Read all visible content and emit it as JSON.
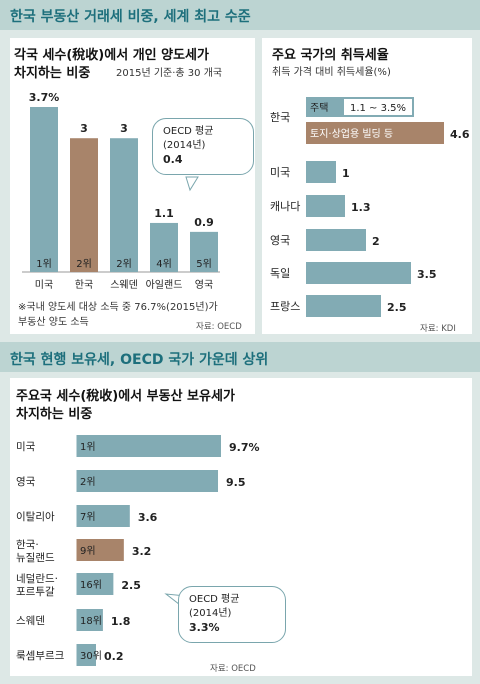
{
  "section1": {
    "title": "한국 부동산 거래세 비중, 세계 최고 수준"
  },
  "left_chart": {
    "title_line1": "각국 세수(稅收)에서 개인 양도세가",
    "title_line2": "차지하는 비중",
    "subtitle": "2015년 기준·총 30 개국",
    "note_line1": "※국내 양도세 대상 소득 중 76.7%(2015년)가",
    "note_line2": "부동산 양도 소득",
    "source": "자료: OECD",
    "callout": {
      "line1": "OECD 평균",
      "line2": "(2014년)",
      "value": "0.4"
    }
  },
  "right_chart": {
    "title": "주요 국가의 취득세율",
    "subtitle": "취득 가격 대비 취득세율(%)",
    "source": "자료: KDI"
  },
  "section2": {
    "title": "한국 현행 보유세, OECD 국가 가운데 상위"
  },
  "bottom_chart": {
    "title_line1": "주요국 세수(稅收)에서 부동산 보유세가",
    "title_line2": "차지하는 비중",
    "source": "자료: OECD",
    "callout": {
      "line1": "OECD 평균",
      "line2": "(2014년)",
      "value": "3.3%"
    }
  },
  "colors": {
    "teal": "#82abb4",
    "brown": "#a8846a",
    "band": "#bcd4d2",
    "bg": "#dde8e6",
    "title": "#1d6f7c"
  },
  "chart_data": [
    {
      "type": "bar",
      "title": "각국 세수(稅收)에서 개인 양도세가 차지하는 비중",
      "subtitle": "2015년 기준·총 30 개국",
      "categories": [
        "미국",
        "한국",
        "스웨덴",
        "아일랜드",
        "영국"
      ],
      "values": [
        3.7,
        3,
        3,
        1.1,
        0.9
      ],
      "value_labels": [
        "3.7%",
        "3",
        "3",
        "1.1",
        "0.9"
      ],
      "ranks": [
        "1위",
        "2위",
        "2위",
        "4위",
        "5위"
      ],
      "highlight": "한국",
      "ylim": [
        0,
        3.7
      ],
      "legend": "none",
      "grid": false
    },
    {
      "type": "bar",
      "orientation": "horizontal",
      "title": "주요 국가의 취득세율",
      "subtitle": "취득 가격 대비 취득세율(%)",
      "categories": [
        "한국",
        "미국",
        "캐나다",
        "영국",
        "독일",
        "프랑스"
      ],
      "values": [
        4.6,
        1,
        1.3,
        2,
        3.5,
        2.5
      ],
      "value_labels": [
        "4.6",
        "1",
        "1.3",
        "2",
        "3.5",
        "2.5"
      ],
      "korea_range": {
        "label": "주택",
        "value": "1.1 ~ 3.5%"
      },
      "korea_bar_label": "토지·상업용 빌딩 등",
      "highlight": "한국",
      "xlim": [
        0,
        4.6
      ],
      "legend": "none",
      "grid": false
    },
    {
      "type": "bar",
      "orientation": "horizontal",
      "title": "주요국 세수(稅收)에서 부동산 보유세가 차지하는 비중",
      "categories": [
        [
          "미국"
        ],
        [
          "영국"
        ],
        [
          "이탈리아"
        ],
        [
          "한국·",
          "뉴질랜드"
        ],
        [
          "네덜란드·",
          "포르투갈"
        ],
        [
          "스웨덴"
        ],
        [
          "룩셈부르크"
        ]
      ],
      "values": [
        9.7,
        9.5,
        3.6,
        3.2,
        2.5,
        1.8,
        0.2
      ],
      "value_labels": [
        "9.7%",
        "9.5",
        "3.6",
        "3.2",
        "2.5",
        "1.8",
        "0.2"
      ],
      "ranks": [
        "1위",
        "2위",
        "7위",
        "9위",
        "16위",
        "18위",
        "30위"
      ],
      "highlight": "한국·뉴질랜드",
      "xlim": [
        0,
        9.7
      ],
      "legend": "none",
      "grid": false
    }
  ]
}
